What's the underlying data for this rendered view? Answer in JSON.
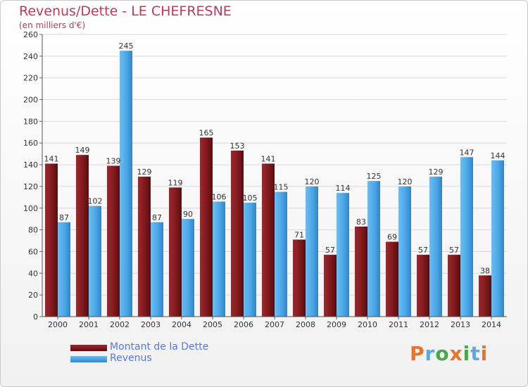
{
  "title": "Revenus/Dette - LE CHEFRESNE",
  "subtitle": "(en milliers d'€)",
  "legend": {
    "dette_label": "Montant de la Dette",
    "revenus_label": "Revenus"
  },
  "logo": {
    "text": "Proxiti"
  },
  "colors": {
    "dette": "#7e1a1e",
    "revenus": "#4ca6e6",
    "title": "#b83c5a",
    "legend_text": "#5a78d8"
  },
  "chart_data": {
    "type": "bar",
    "title": "Revenus/Dette - LE CHEFRESNE",
    "subtitle": "(en milliers d'€)",
    "xlabel": "",
    "ylabel": "",
    "categories": [
      "2000",
      "2001",
      "2002",
      "2003",
      "2004",
      "2005",
      "2006",
      "2007",
      "2008",
      "2009",
      "2010",
      "2011",
      "2012",
      "2013",
      "2014"
    ],
    "series": [
      {
        "name": "Montant de la Dette",
        "values": [
          141,
          149,
          139,
          129,
          119,
          165,
          153,
          141,
          71,
          57,
          83,
          69,
          57,
          57,
          38
        ]
      },
      {
        "name": "Revenus",
        "values": [
          87,
          102,
          245,
          87,
          90,
          106,
          105,
          115,
          120,
          114,
          125,
          120,
          129,
          147,
          144
        ]
      }
    ],
    "ylim": [
      0,
      260
    ],
    "yticks": [
      0,
      20,
      40,
      60,
      80,
      100,
      120,
      140,
      160,
      180,
      200,
      220,
      240,
      260
    ],
    "grid": true,
    "legend_position": "bottom-left"
  }
}
